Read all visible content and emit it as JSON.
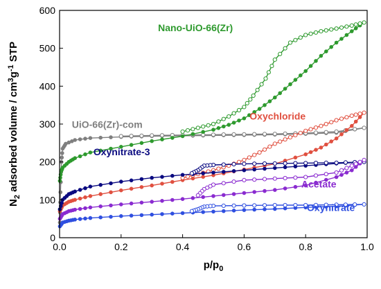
{
  "chart_data": {
    "type": "scatter",
    "xlabel": "p/p0",
    "ylabel": "N2 adsorbed volume / cm3g-1 STP",
    "xlim": [
      0,
      1.0
    ],
    "ylim": [
      0,
      600
    ],
    "xticks": [
      "0.0",
      "0.2",
      "0.4",
      "0.6",
      "0.8",
      "1.0"
    ],
    "yticks": [
      "0",
      "100",
      "200",
      "300",
      "400",
      "500",
      "600"
    ],
    "grid": false,
    "legend": "inline labels",
    "series": [
      {
        "name": "UiO-66(Zr)-com",
        "color": "#7f7f7f",
        "label_anchor": [
          0.04,
          290
        ],
        "adsorption": [
          [
            0.001,
            40
          ],
          [
            0.003,
            120
          ],
          [
            0.006,
            200
          ],
          [
            0.01,
            235
          ],
          [
            0.02,
            248
          ],
          [
            0.05,
            258
          ],
          [
            0.1,
            263
          ],
          [
            0.2,
            266
          ],
          [
            0.3,
            268
          ],
          [
            0.4,
            269
          ],
          [
            0.5,
            270
          ],
          [
            0.6,
            271
          ],
          [
            0.7,
            272
          ],
          [
            0.8,
            274
          ],
          [
            0.9,
            277
          ],
          [
            0.99,
            290
          ]
        ],
        "desorption": [
          [
            0.99,
            290
          ],
          [
            0.9,
            280
          ],
          [
            0.8,
            276
          ],
          [
            0.7,
            274
          ],
          [
            0.6,
            273
          ],
          [
            0.5,
            272
          ],
          [
            0.4,
            271
          ],
          [
            0.3,
            270
          ],
          [
            0.2,
            268
          ]
        ]
      },
      {
        "name": "Nano-UiO-66(Zr)",
        "color": "#2e9a2e",
        "label_anchor": [
          0.32,
          545
        ],
        "adsorption": [
          [
            0.001,
            150
          ],
          [
            0.005,
            175
          ],
          [
            0.01,
            185
          ],
          [
            0.03,
            200
          ],
          [
            0.05,
            210
          ],
          [
            0.1,
            225
          ],
          [
            0.2,
            240
          ],
          [
            0.3,
            255
          ],
          [
            0.4,
            268
          ],
          [
            0.5,
            285
          ],
          [
            0.55,
            298
          ],
          [
            0.6,
            315
          ],
          [
            0.65,
            340
          ],
          [
            0.7,
            370
          ],
          [
            0.75,
            405
          ],
          [
            0.8,
            440
          ],
          [
            0.85,
            480
          ],
          [
            0.9,
            515
          ],
          [
            0.95,
            545
          ],
          [
            0.99,
            568
          ]
        ],
        "desorption": [
          [
            0.99,
            568
          ],
          [
            0.95,
            560
          ],
          [
            0.9,
            552
          ],
          [
            0.85,
            545
          ],
          [
            0.8,
            535
          ],
          [
            0.75,
            515
          ],
          [
            0.7,
            470
          ],
          [
            0.67,
            420
          ],
          [
            0.63,
            375
          ],
          [
            0.6,
            345
          ],
          [
            0.55,
            320
          ],
          [
            0.5,
            300
          ],
          [
            0.45,
            290
          ],
          [
            0.4,
            280
          ]
        ]
      },
      {
        "name": "Oxychloride",
        "color": "#e05040",
        "label_anchor": [
          0.8,
          312
        ],
        "adsorption": [
          [
            0.001,
            70
          ],
          [
            0.01,
            85
          ],
          [
            0.03,
            95
          ],
          [
            0.05,
            100
          ],
          [
            0.1,
            110
          ],
          [
            0.2,
            125
          ],
          [
            0.3,
            138
          ],
          [
            0.4,
            152
          ],
          [
            0.5,
            165
          ],
          [
            0.6,
            180
          ],
          [
            0.7,
            195
          ],
          [
            0.8,
            220
          ],
          [
            0.85,
            238
          ],
          [
            0.9,
            262
          ],
          [
            0.95,
            295
          ],
          [
            0.99,
            330
          ]
        ],
        "desorption": [
          [
            0.99,
            330
          ],
          [
            0.95,
            322
          ],
          [
            0.9,
            310
          ],
          [
            0.85,
            295
          ],
          [
            0.8,
            282
          ],
          [
            0.75,
            265
          ],
          [
            0.7,
            248
          ],
          [
            0.65,
            225
          ],
          [
            0.6,
            205
          ],
          [
            0.55,
            190
          ],
          [
            0.5,
            178
          ],
          [
            0.45,
            168
          ],
          [
            0.4,
            158
          ]
        ]
      },
      {
        "name": "Oxynitrate-3",
        "color": "#0a0a80",
        "label_anchor": [
          0.11,
          218
        ],
        "adsorption": [
          [
            0.001,
            75
          ],
          [
            0.01,
            100
          ],
          [
            0.03,
            115
          ],
          [
            0.05,
            122
          ],
          [
            0.1,
            135
          ],
          [
            0.2,
            148
          ],
          [
            0.3,
            158
          ],
          [
            0.4,
            166
          ],
          [
            0.5,
            172
          ],
          [
            0.6,
            178
          ],
          [
            0.7,
            184
          ],
          [
            0.8,
            190
          ],
          [
            0.9,
            196
          ],
          [
            0.99,
            200
          ]
        ],
        "desorption": [
          [
            0.99,
            200
          ],
          [
            0.9,
            198
          ],
          [
            0.8,
            197
          ],
          [
            0.7,
            196
          ],
          [
            0.6,
            195
          ],
          [
            0.5,
            192
          ],
          [
            0.47,
            190
          ],
          [
            0.45,
            178
          ],
          [
            0.43,
            170
          ]
        ]
      },
      {
        "name": "Acetate",
        "color": "#8a2bd0",
        "label_anchor": [
          0.9,
          133
        ],
        "adsorption": [
          [
            0.001,
            50
          ],
          [
            0.01,
            62
          ],
          [
            0.03,
            70
          ],
          [
            0.05,
            74
          ],
          [
            0.1,
            80
          ],
          [
            0.2,
            88
          ],
          [
            0.3,
            95
          ],
          [
            0.4,
            102
          ],
          [
            0.5,
            110
          ],
          [
            0.6,
            118
          ],
          [
            0.7,
            126
          ],
          [
            0.8,
            138
          ],
          [
            0.9,
            160
          ],
          [
            0.95,
            178
          ],
          [
            0.99,
            205
          ]
        ],
        "desorption": [
          [
            0.99,
            205
          ],
          [
            0.95,
            190
          ],
          [
            0.9,
            172
          ],
          [
            0.8,
            160
          ],
          [
            0.7,
            156
          ],
          [
            0.6,
            152
          ],
          [
            0.5,
            140
          ],
          [
            0.47,
            128
          ],
          [
            0.45,
            112
          ]
        ]
      },
      {
        "name": "Oxynitrate",
        "color": "#2f4fe0",
        "label_anchor": [
          0.96,
          70
        ],
        "adsorption": [
          [
            0.001,
            30
          ],
          [
            0.01,
            40
          ],
          [
            0.03,
            45
          ],
          [
            0.05,
            48
          ],
          [
            0.1,
            52
          ],
          [
            0.2,
            57
          ],
          [
            0.3,
            61
          ],
          [
            0.4,
            65
          ],
          [
            0.5,
            69
          ],
          [
            0.6,
            73
          ],
          [
            0.7,
            76
          ],
          [
            0.8,
            80
          ],
          [
            0.9,
            83
          ],
          [
            0.99,
            88
          ]
        ],
        "desorption": [
          [
            0.99,
            88
          ],
          [
            0.9,
            87
          ],
          [
            0.8,
            86
          ],
          [
            0.7,
            86
          ],
          [
            0.6,
            85
          ],
          [
            0.5,
            84
          ],
          [
            0.47,
            82
          ],
          [
            0.45,
            75
          ],
          [
            0.43,
            70
          ]
        ]
      }
    ]
  }
}
